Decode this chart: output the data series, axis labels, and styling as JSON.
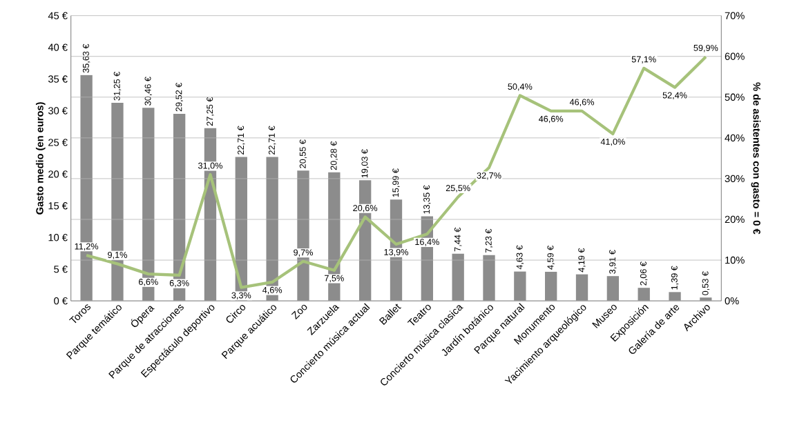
{
  "chart_data": {
    "type": "bar",
    "ylabel": "Gasto medio (en euros)",
    "y2label": "% de asistentes con gasto = 0 €",
    "categories": [
      "Toros",
      "Parque temático",
      "Ópera",
      "Parque de atracciones",
      "Espectáculo deportivo",
      "Circo",
      "Parque acuático",
      "Zoo",
      "Zarzuela",
      "Concierto música actual",
      "Ballet",
      "Teatro",
      "Concierto música clasica",
      "Jardín botánico",
      "Parque natural",
      "Monumento",
      "Yacimiento arqueológico",
      "Museo",
      "Exposición",
      "Galería de arte",
      "Archivo"
    ],
    "series": [
      {
        "color": "#8c8c8c",
        "values": [
          35.63,
          31.25,
          30.46,
          29.52,
          27.25,
          22.71,
          22.71,
          20.55,
          20.28,
          19.03,
          15.99,
          13.35,
          7.44,
          7.23,
          4.63,
          4.59,
          4.19,
          3.91,
          2.06,
          1.39,
          0.53
        ],
        "value_labels": [
          "35,63 €",
          "31,25 €",
          "30,46 €",
          "29,52 €",
          "27,25 €",
          "22,71 €",
          "22,71 €",
          "20,55 €",
          "20,28 €",
          "19,03 €",
          "15,99 €",
          "13,35 €",
          "7,44 €",
          "7,23 €",
          "4,63 €",
          "4,59 €",
          "4,19 €",
          "3,91 €",
          "2,06 €",
          "1,39 €",
          "0,53 €"
        ]
      },
      {
        "type": "line",
        "axis": "y2",
        "color": "#a6c27a",
        "values": [
          11.2,
          9.1,
          6.6,
          6.3,
          31.0,
          3.3,
          4.6,
          9.7,
          7.5,
          20.6,
          13.9,
          16.4,
          25.5,
          32.7,
          50.4,
          46.6,
          46.6,
          41.0,
          57.1,
          52.4,
          59.9
        ],
        "value_labels": [
          "11,2%",
          "9,1%",
          "6,6%",
          "6,3%",
          "31,0%",
          "3,3%",
          "4,6%",
          "9,7%",
          "7,5%",
          "20,6%",
          "13,9%",
          "16,4%",
          "25,5%",
          "32,7%",
          "50,4%",
          "46,6%",
          "46,6%",
          "41,0%",
          "57,1%",
          "52,4%",
          "59,9%"
        ]
      }
    ],
    "ylim": [
      0,
      45
    ],
    "yticks": [
      {
        "value": 0,
        "label": "0 €"
      },
      {
        "value": 5,
        "label": "5 €"
      },
      {
        "value": 10,
        "label": "10 €"
      },
      {
        "value": 15,
        "label": "15 €"
      },
      {
        "value": 20,
        "label": "20 €"
      },
      {
        "value": 25,
        "label": "25 €"
      },
      {
        "value": 30,
        "label": "30 €"
      },
      {
        "value": 35,
        "label": "35 €"
      },
      {
        "value": 40,
        "label": "40 €"
      },
      {
        "value": 45,
        "label": "45 €"
      }
    ],
    "y2lim": [
      0,
      70
    ],
    "y2ticks": [
      {
        "value": 0,
        "label": "0%"
      },
      {
        "value": 10,
        "label": "10%"
      },
      {
        "value": 20,
        "label": "20%"
      },
      {
        "value": 30,
        "label": "30%"
      },
      {
        "value": 40,
        "label": "40%"
      },
      {
        "value": 50,
        "label": "50%"
      },
      {
        "value": 60,
        "label": "60%"
      },
      {
        "value": 70,
        "label": "70%"
      }
    ],
    "grid": "y",
    "marker": "none",
    "line_style": "solid"
  }
}
